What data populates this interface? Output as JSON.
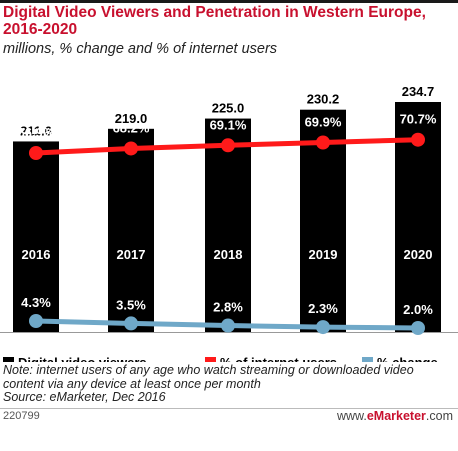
{
  "header": {
    "title": "Digital Video Viewers and Penetration in Western Europe, 2016-2020",
    "subtitle": "millions, % change and % of internet users"
  },
  "chart_data": {
    "type": "bar",
    "categories": [
      "2016",
      "2017",
      "2018",
      "2019",
      "2020"
    ],
    "series": [
      {
        "name": "Digital video viewers",
        "kind": "bar",
        "color": "#000000",
        "values": [
          211.6,
          219.0,
          225.0,
          230.2,
          234.7
        ],
        "labels": [
          "211.6",
          "219.0",
          "225.0",
          "230.2",
          "234.7"
        ]
      },
      {
        "name": "% of internet users",
        "kind": "line",
        "color": "#ff1a1a",
        "values": [
          66.9,
          68.2,
          69.1,
          69.9,
          70.7
        ],
        "labels": [
          "66.9%",
          "68.2%",
          "69.1%",
          "69.9%",
          "70.7%"
        ]
      },
      {
        "name": "% change",
        "kind": "line",
        "color": "#6fa8c8",
        "values": [
          4.3,
          3.5,
          2.8,
          2.3,
          2.0
        ],
        "labels": [
          "4.3%",
          "3.5%",
          "2.8%",
          "2.3%",
          "2.0%"
        ]
      }
    ],
    "title": "Digital Video Viewers and Penetration in Western Europe, 2016-2020",
    "subtitle": "millions, % change and % of internet users",
    "legend_position": "bottom",
    "grid": false
  },
  "footer": {
    "note": "Note: internet users of any age who watch streaming or downloaded video content via any device at least once per month",
    "source": "Source: eMarketer, Dec 2016",
    "id": "220799",
    "brand_prefix": "www.",
    "brand_name": "eMarketer",
    "brand_suffix": ".com"
  }
}
